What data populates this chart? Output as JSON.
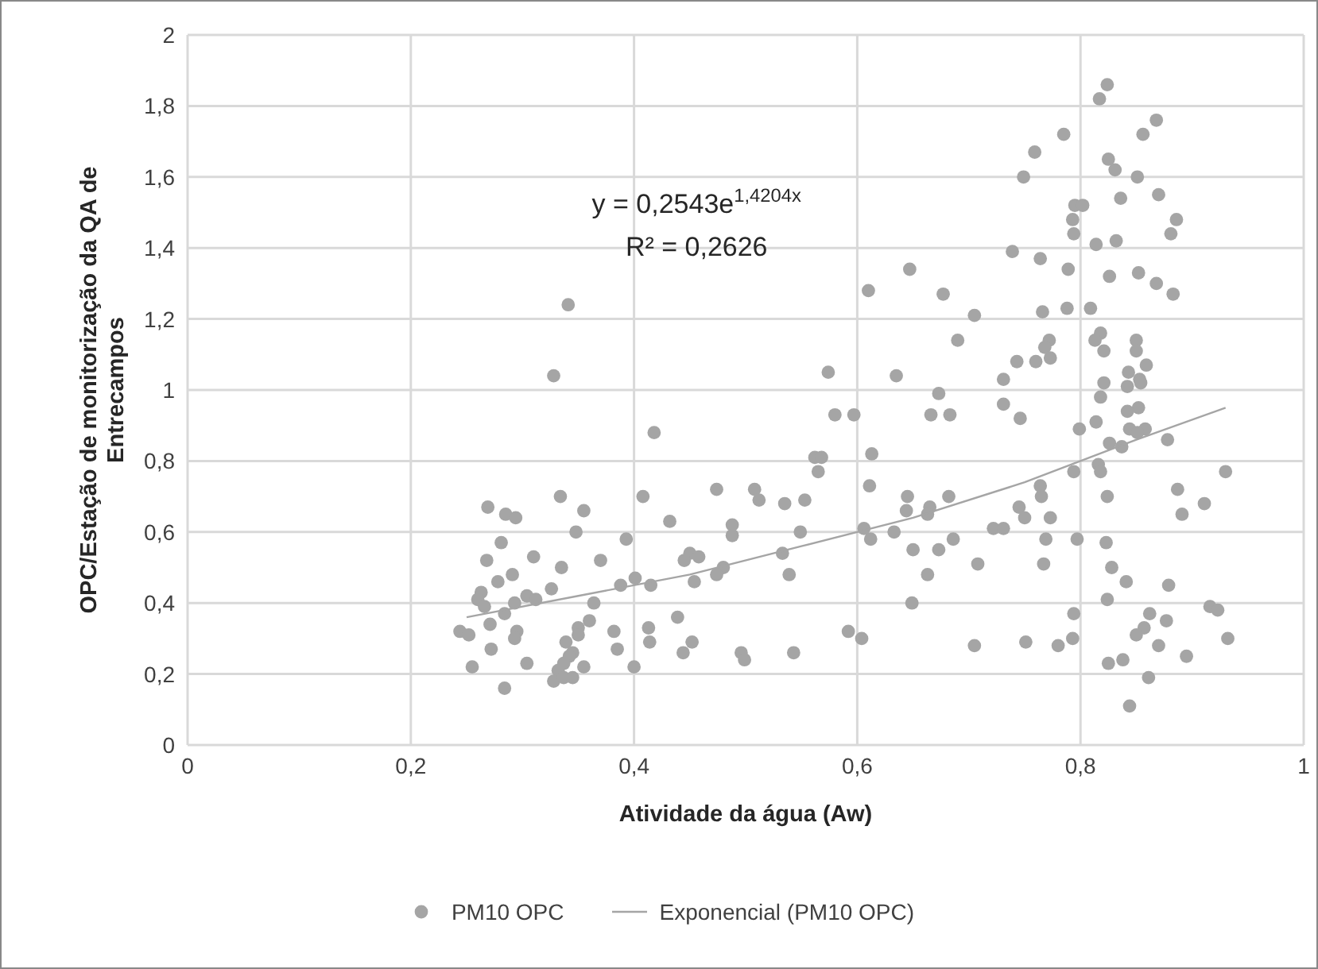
{
  "chart_data": {
    "type": "scatter",
    "xlabel": "Atividade da água (Aw)",
    "ylabel": "OPC/Estação de monitorização da QA de Entrecampos",
    "annotations": [
      "y = 0,2543e$^{1,4204x}$",
      "R² = 0,2626"
    ],
    "xlim": [
      0,
      1
    ],
    "xticks": [
      0,
      {
        "value": 0.2,
        "label": "0,2"
      },
      {
        "value": 0.4,
        "label": "0,4"
      },
      {
        "value": 0.6,
        "label": "0,6"
      },
      {
        "value": 0.8,
        "label": "0,8"
      },
      1
    ],
    "ylim": [
      0,
      2
    ],
    "yticks": [
      0,
      {
        "value": 0.2,
        "label": "0,2"
      },
      {
        "value": 0.4,
        "label": "0,4"
      },
      {
        "value": 0.6,
        "label": "0,6"
      },
      {
        "value": 0.8,
        "label": "0,8"
      },
      1,
      {
        "value": 1.2,
        "label": "1,2"
      },
      {
        "value": 1.4,
        "label": "1,4"
      },
      {
        "value": 1.6,
        "label": "1,6"
      },
      {
        "value": 1.8,
        "label": "1,8"
      },
      2
    ],
    "grid": true,
    "legend": "bottom",
    "series": [
      {
        "name": "PM10 OPC",
        "color": "#a5a5a5",
        "marker": "circle",
        "x": [
          0.341,
          0.328,
          0.418,
          0.269,
          0.285,
          0.294,
          0.334,
          0.355,
          0.408,
          0.432,
          0.348,
          0.281,
          0.31,
          0.268,
          0.37,
          0.393,
          0.335,
          0.291,
          0.278,
          0.326,
          0.263,
          0.26,
          0.304,
          0.312,
          0.293,
          0.266,
          0.284,
          0.364,
          0.388,
          0.401,
          0.415,
          0.45,
          0.445,
          0.271,
          0.244,
          0.252,
          0.295,
          0.293,
          0.272,
          0.35,
          0.36,
          0.35,
          0.339,
          0.345,
          0.342,
          0.337,
          0.332,
          0.328,
          0.337,
          0.345,
          0.355,
          0.382,
          0.385,
          0.4,
          0.413,
          0.414,
          0.439,
          0.444,
          0.452,
          0.255,
          0.304,
          0.284,
          0.454,
          0.647,
          0.61,
          0.677,
          0.705,
          0.69,
          0.574,
          0.635,
          0.673,
          0.58,
          0.597,
          0.666,
          0.683,
          0.613,
          0.562,
          0.568,
          0.565,
          0.611,
          0.474,
          0.508,
          0.512,
          0.535,
          0.553,
          0.645,
          0.644,
          0.665,
          0.663,
          0.682,
          0.488,
          0.488,
          0.549,
          0.606,
          0.612,
          0.633,
          0.65,
          0.673,
          0.686,
          0.708,
          0.722,
          0.458,
          0.48,
          0.474,
          0.533,
          0.539,
          0.663,
          0.649,
          0.592,
          0.604,
          0.705,
          0.496,
          0.499,
          0.543,
          0.824,
          0.817,
          0.868,
          0.856,
          0.785,
          0.759,
          0.749,
          0.825,
          0.831,
          0.851,
          0.836,
          0.87,
          0.795,
          0.802,
          0.793,
          0.794,
          0.886,
          0.881,
          0.814,
          0.832,
          0.739,
          0.764,
          0.789,
          0.826,
          0.852,
          0.868,
          0.883,
          0.766,
          0.788,
          0.809,
          0.818,
          0.813,
          0.821,
          0.85,
          0.85,
          0.772,
          0.768,
          0.773,
          0.76,
          0.743,
          0.731,
          0.843,
          0.859,
          0.853,
          0.854,
          0.842,
          0.821,
          0.818,
          0.731,
          0.746,
          0.852,
          0.842,
          0.814,
          0.799,
          0.844,
          0.858,
          0.851,
          0.878,
          0.826,
          0.837,
          0.816,
          0.818,
          0.794,
          0.93,
          0.887,
          0.824,
          0.911,
          0.891,
          0.764,
          0.765,
          0.745,
          0.75,
          0.773,
          0.731,
          0.769,
          0.797,
          0.823,
          0.767,
          0.828,
          0.841,
          0.879,
          0.824,
          0.794,
          0.862,
          0.916,
          0.923,
          0.877,
          0.857,
          0.85,
          0.87,
          0.932,
          0.751,
          0.78,
          0.793,
          0.825,
          0.838,
          0.895,
          0.861,
          0.844
        ],
        "values": [
          1.24,
          1.04,
          0.88,
          0.67,
          0.65,
          0.64,
          0.7,
          0.66,
          0.7,
          0.63,
          0.6,
          0.57,
          0.53,
          0.52,
          0.52,
          0.58,
          0.5,
          0.48,
          0.46,
          0.44,
          0.43,
          0.41,
          0.42,
          0.41,
          0.4,
          0.39,
          0.37,
          0.4,
          0.45,
          0.47,
          0.45,
          0.54,
          0.52,
          0.34,
          0.32,
          0.31,
          0.32,
          0.3,
          0.27,
          0.33,
          0.35,
          0.31,
          0.29,
          0.26,
          0.25,
          0.23,
          0.21,
          0.18,
          0.19,
          0.19,
          0.22,
          0.32,
          0.27,
          0.22,
          0.33,
          0.29,
          0.36,
          0.26,
          0.29,
          0.22,
          0.23,
          0.16,
          0.46,
          1.34,
          1.28,
          1.27,
          1.21,
          1.14,
          1.05,
          1.04,
          0.99,
          0.93,
          0.93,
          0.93,
          0.93,
          0.82,
          0.81,
          0.81,
          0.77,
          0.73,
          0.72,
          0.72,
          0.69,
          0.68,
          0.69,
          0.7,
          0.66,
          0.67,
          0.65,
          0.7,
          0.62,
          0.59,
          0.6,
          0.61,
          0.58,
          0.6,
          0.55,
          0.55,
          0.58,
          0.51,
          0.61,
          0.53,
          0.5,
          0.48,
          0.54,
          0.48,
          0.48,
          0.4,
          0.32,
          0.3,
          0.28,
          0.26,
          0.24,
          0.26,
          1.86,
          1.82,
          1.76,
          1.72,
          1.72,
          1.67,
          1.6,
          1.65,
          1.62,
          1.6,
          1.54,
          1.55,
          1.52,
          1.52,
          1.48,
          1.44,
          1.48,
          1.44,
          1.41,
          1.42,
          1.39,
          1.37,
          1.34,
          1.32,
          1.33,
          1.3,
          1.27,
          1.22,
          1.23,
          1.23,
          1.16,
          1.14,
          1.11,
          1.14,
          1.11,
          1.14,
          1.12,
          1.09,
          1.08,
          1.08,
          1.03,
          1.05,
          1.07,
          1.03,
          1.02,
          1.01,
          1.02,
          0.98,
          0.96,
          0.92,
          0.95,
          0.94,
          0.91,
          0.89,
          0.89,
          0.89,
          0.88,
          0.86,
          0.85,
          0.84,
          0.79,
          0.77,
          0.77,
          0.77,
          0.72,
          0.7,
          0.68,
          0.65,
          0.73,
          0.7,
          0.67,
          0.64,
          0.64,
          0.61,
          0.58,
          0.58,
          0.57,
          0.51,
          0.5,
          0.46,
          0.45,
          0.41,
          0.37,
          0.37,
          0.39,
          0.38,
          0.35,
          0.33,
          0.31,
          0.28,
          0.3,
          0.29,
          0.28,
          0.3,
          0.23,
          0.24,
          0.25,
          0.19,
          0.11
        ]
      },
      {
        "type": "line",
        "name": "Exponencial (PM10 OPC)",
        "color": "#a5a5a5",
        "marker": "none",
        "line_style": "solid",
        "x": [
          0.25,
          0.35,
          0.45,
          0.55,
          0.65,
          0.75,
          0.85,
          0.93
        ],
        "values": [
          0.36,
          0.42,
          0.48,
          0.56,
          0.64,
          0.74,
          0.86,
          0.95
        ]
      }
    ]
  }
}
